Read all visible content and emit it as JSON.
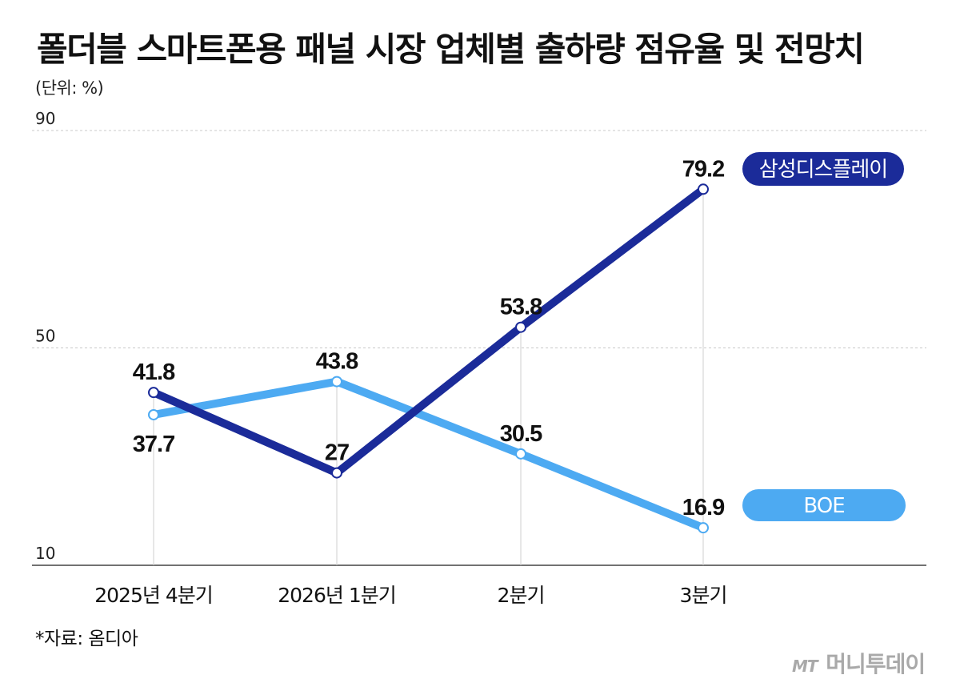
{
  "title": "폴더블 스마트폰용 패널 시장 업체별 출하량 점유율 및 전망치",
  "unit": "(단위: %)",
  "source": "*자료: 옴디아",
  "brand": {
    "mark": "MT",
    "name": "머니투데이"
  },
  "chart_data": {
    "type": "line",
    "categories": [
      "2025년 4분기",
      "2026년 1분기",
      "2분기",
      "3분기"
    ],
    "ylim": [
      10,
      90
    ],
    "yticks": [
      10,
      50,
      90
    ],
    "grid": true,
    "legend_position": "right, at end of each line",
    "series": [
      {
        "name": "삼성디스플레이",
        "values": [
          41.8,
          27,
          53.8,
          79.2
        ],
        "labels": [
          "41.8",
          "27",
          "53.8",
          "79.2"
        ],
        "color": "#1b2b99"
      },
      {
        "name": "BOE",
        "values": [
          37.7,
          43.8,
          30.5,
          16.9
        ],
        "labels": [
          "37.7",
          "43.8",
          "30.5",
          "16.9"
        ],
        "color": "#4daaf2"
      }
    ]
  }
}
